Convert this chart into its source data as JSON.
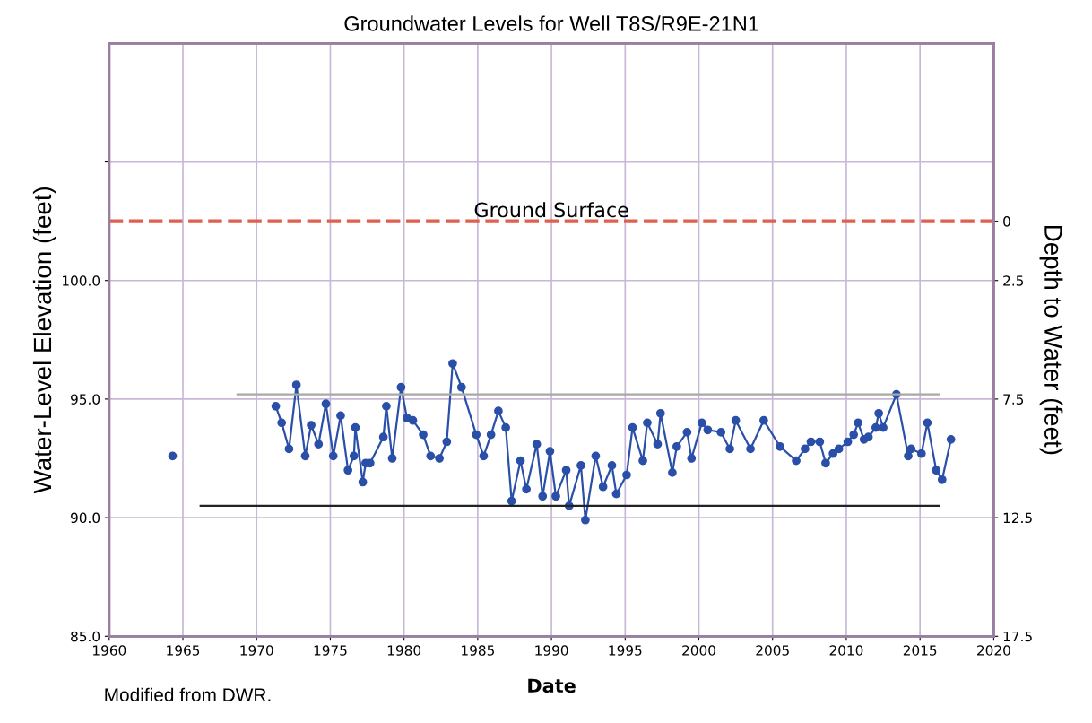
{
  "chart_data": {
    "type": "line",
    "title": "Groundwater Levels for Well T8S/R9E-21N1",
    "xlabel": "Date",
    "ylabel": "Water-Level Elevation (feet)",
    "y2label": "Depth to Water (feet)",
    "annotations": [
      "Modified from DWR."
    ],
    "series": [
      {
        "color": "#2a4fa8",
        "marker": "circle",
        "x": [
          1964.3,
          1968.0,
          1971.3,
          1971.7,
          1972.2,
          1972.7,
          1973.3,
          1973.7,
          1974.2,
          1974.7,
          1975.2,
          1975.7,
          1976.2,
          1976.6,
          1976.7,
          1977.2,
          1977.4,
          1977.7,
          1978.6,
          1978.8,
          1979.2,
          1979.8,
          1980.2,
          1980.6,
          1981.3,
          1981.8,
          1982.4,
          1982.9,
          1983.3,
          1983.9,
          1984.9,
          1985.4,
          1985.9,
          1986.4,
          1986.9,
          1987.3,
          1987.9,
          1988.3,
          1989.0,
          1989.4,
          1989.9,
          1990.3,
          1991.0,
          1991.2,
          1992.0,
          1992.3,
          1993.0,
          1993.5,
          1994.1,
          1994.4,
          1995.1,
          1995.5,
          1996.2,
          1996.5,
          1997.2,
          1997.4,
          1998.2,
          1998.5,
          1999.2,
          1999.5,
          2000.2,
          2000.6,
          2001.5,
          2002.1,
          2002.5,
          2003.5,
          2004.4,
          2005.5,
          2006.6,
          2007.2,
          2007.6,
          2008.2,
          2008.6,
          2009.1,
          2009.5,
          2010.1,
          2010.5,
          2010.8,
          2011.2,
          2011.5,
          2012.0,
          2012.2,
          2012.5,
          2013.4,
          2014.2,
          2014.4,
          2015.1,
          2015.5,
          2016.1,
          2016.5,
          2017.1
        ],
        "values": [
          92.6,
          null,
          94.7,
          94.0,
          92.9,
          95.6,
          92.6,
          93.9,
          93.1,
          94.8,
          92.6,
          94.3,
          92.0,
          92.6,
          93.8,
          91.5,
          92.3,
          92.3,
          93.4,
          94.7,
          92.5,
          95.5,
          94.2,
          94.1,
          93.5,
          92.6,
          92.5,
          93.2,
          96.5,
          95.5,
          93.5,
          92.6,
          93.5,
          94.5,
          93.8,
          90.7,
          92.4,
          91.2,
          93.1,
          90.9,
          92.8,
          90.9,
          92.0,
          90.5,
          92.2,
          89.9,
          92.6,
          91.3,
          92.2,
          91.0,
          91.8,
          93.8,
          92.4,
          94.0,
          93.1,
          94.4,
          91.9,
          93.0,
          93.6,
          92.5,
          94.0,
          93.7,
          93.6,
          92.9,
          94.1,
          92.9,
          94.1,
          93.0,
          92.4,
          92.9,
          93.2,
          93.2,
          92.3,
          92.7,
          92.9,
          93.2,
          93.5,
          94.0,
          93.3,
          93.4,
          93.8,
          94.4,
          93.8,
          95.2,
          92.6,
          92.9,
          92.7,
          94.0,
          92.0,
          91.6,
          93.3
        ]
      },
      {
        "color": "#a8a8a8",
        "marker": "none",
        "x": [
          1968.7,
          2016.3
        ],
        "values": [
          95.2,
          95.2
        ]
      },
      {
        "color": "#222222",
        "marker": "none",
        "x": [
          1966.2,
          2016.3
        ],
        "values": [
          90.5,
          90.5
        ]
      }
    ],
    "ref_lines": [
      {
        "axis": "y",
        "value": 102.5,
        "label": "Ground Surface",
        "color": "#e06050",
        "line_style": "dashed"
      }
    ],
    "xlim": [
      1960,
      2020
    ],
    "xticks": [
      1960,
      1965,
      1970,
      1975,
      1980,
      1985,
      1990,
      1995,
      2000,
      2005,
      2010,
      2015,
      2020
    ],
    "ylim": [
      85,
      110
    ],
    "yticks": [
      {
        "value": 85,
        "label": "85.0"
      },
      {
        "value": 90,
        "label": "90.0"
      },
      {
        "value": 95,
        "label": "95.0"
      },
      {
        "value": 100,
        "label": "100.0"
      },
      {
        "value": 105,
        "label": null
      }
    ],
    "y2lim": [
      17.5,
      -7.5
    ],
    "y2ticks": [
      0,
      2.5,
      7.5,
      12.5,
      17.5
    ],
    "grid": true,
    "legend": false
  }
}
